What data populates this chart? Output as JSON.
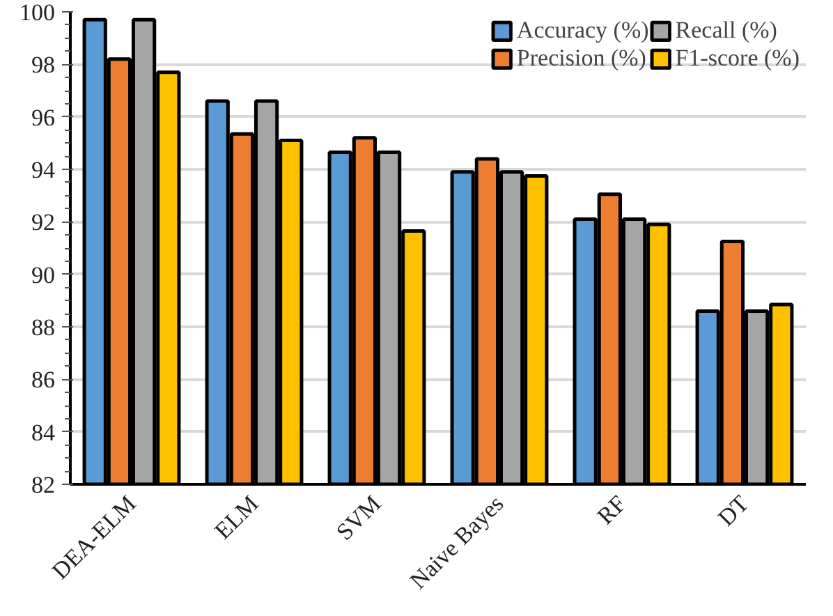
{
  "chart_data": {
    "type": "bar",
    "categories": [
      "DEA-ELM",
      "ELM",
      "SVM",
      "Naive Bayes",
      "RF",
      "DT"
    ],
    "series": [
      {
        "name": "Accuracy (%)",
        "color": "#5b9bd5",
        "values": [
          99.7,
          96.6,
          94.65,
          93.9,
          92.1,
          88.6
        ]
      },
      {
        "name": "Precision (%)",
        "color": "#ed7d31",
        "values": [
          98.2,
          95.35,
          95.2,
          94.4,
          93.05,
          91.25
        ]
      },
      {
        "name": "Recall (%)",
        "color": "#a5a5a5",
        "values": [
          99.7,
          96.6,
          94.65,
          93.9,
          92.1,
          88.6
        ]
      },
      {
        "name": "F1-score (%)",
        "color": "#ffc000",
        "values": [
          97.7,
          95.1,
          91.65,
          93.75,
          91.9,
          88.85
        ]
      }
    ],
    "ylim": [
      82,
      100
    ],
    "yticks": [
      82,
      84,
      86,
      88,
      90,
      92,
      94,
      96,
      98,
      100
    ],
    "grid": "y",
    "legend": "top right"
  }
}
